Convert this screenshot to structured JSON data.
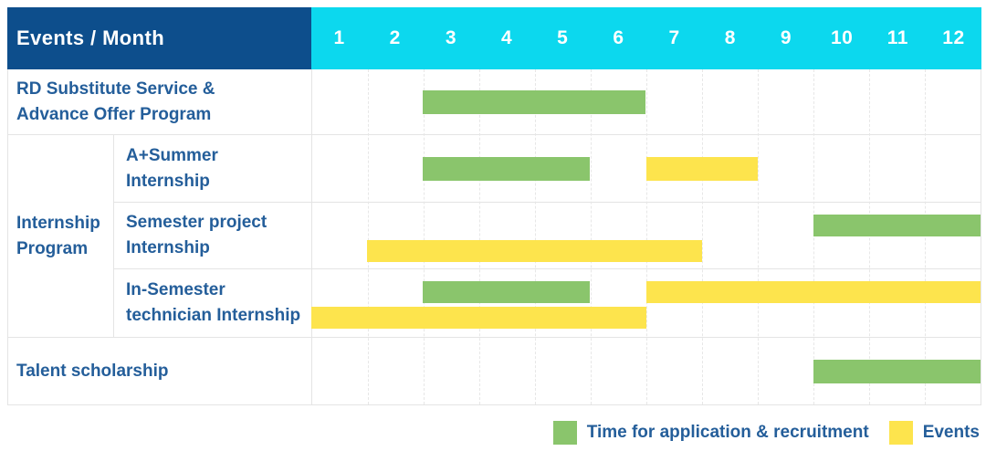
{
  "table": {
    "corner_header": "Events / Month"
  },
  "colors": {
    "header_bg": "#0d4e8c",
    "months_bg": "#0cd8ee",
    "header_text": "#ffffff",
    "label_text": "#245e9a",
    "grid": "#e4e4e4",
    "recruitment_green": "#8ac56c",
    "events_yellow": "#fde44d"
  },
  "group_labels": [
    {
      "name": "Internship Program",
      "lines": [
        "Internship",
        "Program"
      ]
    }
  ],
  "chart_data": {
    "type": "bar",
    "variant": "gantt",
    "title": "Events / Month",
    "x": {
      "label": "Month",
      "range": [
        1,
        12
      ],
      "ticks": [
        "1",
        "2",
        "3",
        "4",
        "5",
        "6",
        "7",
        "8",
        "9",
        "10",
        "11",
        "12"
      ]
    },
    "legend_position": "bottom-right",
    "grid": "dashed-vertical-month-lines",
    "legend": [
      {
        "series": "recruitment",
        "label": "Time for application & recruitment",
        "color": "#8ac56c"
      },
      {
        "series": "events",
        "label": "Events",
        "color": "#fde44d"
      }
    ],
    "rows": [
      {
        "group": null,
        "label": "RD Substitute Service & Advance Offer Program",
        "label_lines": [
          "RD Substitute Service &",
          "Advance Offer Program"
        ],
        "bars": [
          {
            "series": "recruitment",
            "start_month": 3,
            "end_month": 6,
            "lane": "center"
          }
        ]
      },
      {
        "group": "Internship Program",
        "label": "A+Summer Internship",
        "label_lines": [
          "A+Summer",
          "Internship"
        ],
        "bars": [
          {
            "series": "recruitment",
            "start_month": 3,
            "end_month": 5,
            "lane": "center"
          },
          {
            "series": "events",
            "start_month": 7,
            "end_month": 8,
            "lane": "center"
          }
        ]
      },
      {
        "group": "Internship Program",
        "label": "Semester project Internship",
        "label_lines": [
          "Semester project",
          "Internship"
        ],
        "bars": [
          {
            "series": "recruitment",
            "start_month": 10,
            "end_month": 12,
            "lane": "top"
          },
          {
            "series": "events",
            "start_month": 2,
            "end_month": 7,
            "lane": "bottom"
          }
        ]
      },
      {
        "group": "Internship Program",
        "label": "In-Semester technician Internship",
        "label_lines": [
          "In-Semester",
          "technician Internship"
        ],
        "bars": [
          {
            "series": "recruitment",
            "start_month": 3,
            "end_month": 5,
            "lane": "top"
          },
          {
            "series": "events",
            "start_month": 7,
            "end_month": 12,
            "lane": "top"
          },
          {
            "series": "events",
            "start_month": 1,
            "end_month": 6,
            "lane": "bottom"
          }
        ]
      },
      {
        "group": null,
        "label": "Talent scholarship",
        "label_lines": [
          "Talent scholarship"
        ],
        "bars": [
          {
            "series": "recruitment",
            "start_month": 10,
            "end_month": 12,
            "lane": "center"
          }
        ]
      }
    ]
  }
}
